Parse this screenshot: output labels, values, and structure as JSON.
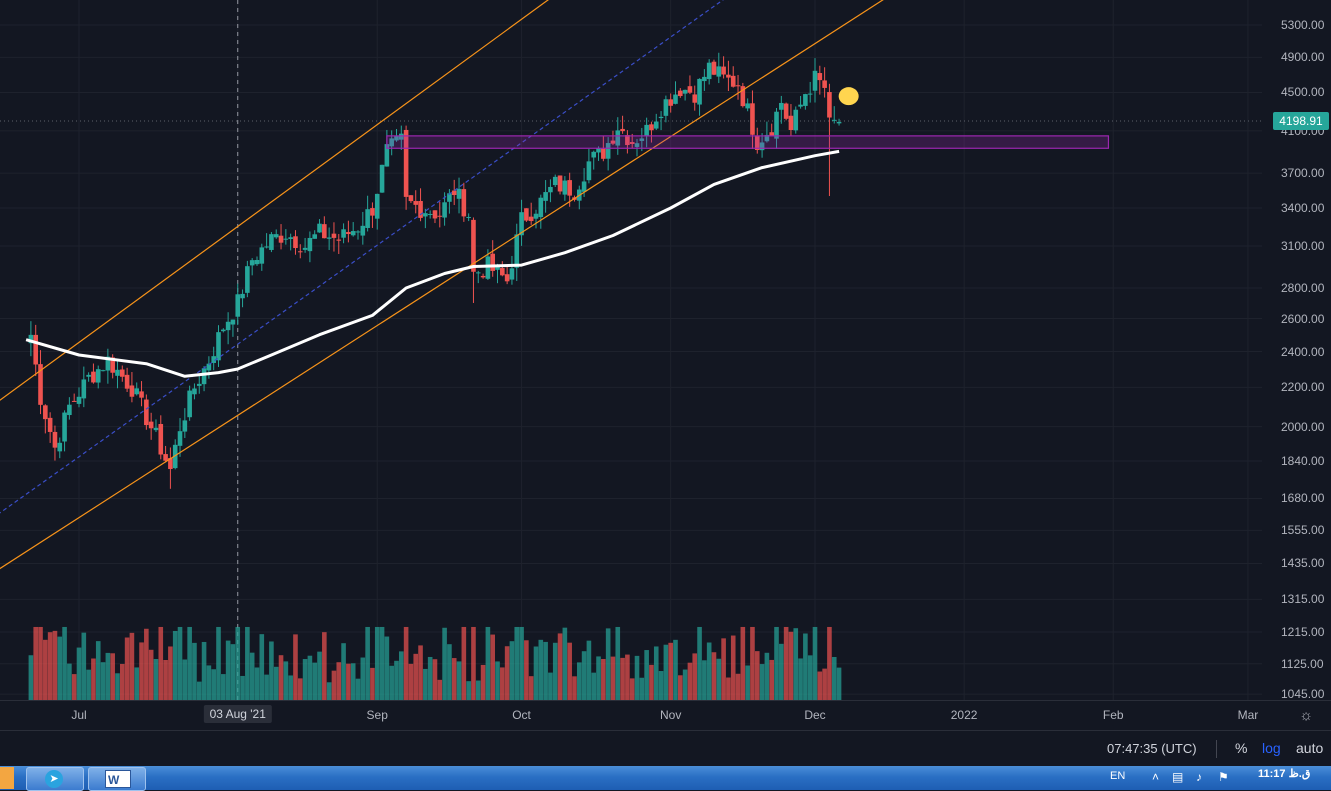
{
  "chart_data": {
    "type": "candlestick",
    "yscale": "log",
    "ylim": [
      1000,
      5600
    ],
    "price_ticks": [
      "5300.00",
      "4900.00",
      "4500.00",
      "4100.00",
      "3700.00",
      "3400.00",
      "3100.00",
      "2800.00",
      "2600.00",
      "2400.00",
      "2200.00",
      "2000.00",
      "1840.00",
      "1680.00",
      "1555.00",
      "1435.00",
      "1315.00",
      "1215.00",
      "1125.00",
      "1045.00"
    ],
    "current_price": "4198.91",
    "time_labels": [
      {
        "text": "Jul",
        "date": "2021-07-01"
      },
      {
        "text": "03 Aug '21",
        "date": "2021-08-03",
        "highlight": true
      },
      {
        "text": "Sep",
        "date": "2021-09-01"
      },
      {
        "text": "Oct",
        "date": "2021-10-01"
      },
      {
        "text": "Nov",
        "date": "2021-11-01"
      },
      {
        "text": "Dec",
        "date": "2021-12-01"
      },
      {
        "text": "2022",
        "date": "2022-01-01"
      },
      {
        "text": "Feb",
        "date": "2022-02-01"
      },
      {
        "text": "Mar",
        "date": "2022-03-01"
      }
    ],
    "close_anchors": [
      [
        "2021-06-21",
        2500
      ],
      [
        "2021-06-23",
        2150
      ],
      [
        "2021-06-26",
        1900
      ],
      [
        "2021-06-29",
        2100
      ],
      [
        "2021-07-03",
        2250
      ],
      [
        "2021-07-07",
        2350
      ],
      [
        "2021-07-12",
        2200
      ],
      [
        "2021-07-17",
        1950
      ],
      [
        "2021-07-20",
        1800
      ],
      [
        "2021-07-22",
        2000
      ],
      [
        "2021-07-25",
        2200
      ],
      [
        "2021-07-28",
        2350
      ],
      [
        "2021-07-31",
        2550
      ],
      [
        "2021-08-03",
        2700
      ],
      [
        "2021-08-06",
        3000
      ],
      [
        "2021-08-10",
        3150
      ],
      [
        "2021-08-13",
        3200
      ],
      [
        "2021-08-17",
        3100
      ],
      [
        "2021-08-20",
        3200
      ],
      [
        "2021-08-24",
        3150
      ],
      [
        "2021-08-28",
        3250
      ],
      [
        "2021-08-31",
        3400
      ],
      [
        "2021-09-03",
        3900
      ],
      [
        "2021-09-06",
        4000
      ],
      [
        "2021-09-07",
        3450
      ],
      [
        "2021-09-10",
        3400
      ],
      [
        "2021-09-14",
        3350
      ],
      [
        "2021-09-17",
        3550
      ],
      [
        "2021-09-20",
        3350
      ],
      [
        "2021-09-21",
        2900
      ],
      [
        "2021-09-24",
        2950
      ],
      [
        "2021-09-28",
        2850
      ],
      [
        "2021-10-01",
        3300
      ],
      [
        "2021-10-05",
        3450
      ],
      [
        "2021-10-08",
        3600
      ],
      [
        "2021-10-12",
        3550
      ],
      [
        "2021-10-15",
        3800
      ],
      [
        "2021-10-18",
        3900
      ],
      [
        "2021-10-21",
        4150
      ],
      [
        "2021-10-24",
        4000
      ],
      [
        "2021-10-27",
        4100
      ],
      [
        "2021-10-30",
        4350
      ],
      [
        "2021-11-03",
        4550
      ],
      [
        "2021-11-06",
        4500
      ],
      [
        "2021-11-09",
        4780
      ],
      [
        "2021-11-12",
        4650
      ],
      [
        "2021-11-15",
        4600
      ],
      [
        "2021-11-17",
        4300
      ],
      [
        "2021-11-19",
        4000
      ],
      [
        "2021-11-22",
        4150
      ],
      [
        "2021-11-24",
        4400
      ],
      [
        "2021-11-26",
        4100
      ],
      [
        "2021-11-29",
        4500
      ],
      [
        "2021-12-01",
        4650
      ],
      [
        "2021-12-03",
        4550
      ],
      [
        "2021-12-04",
        4150
      ],
      [
        "2021-12-06",
        4198
      ]
    ],
    "ma_line": [
      [
        "2021-06-20",
        2470
      ],
      [
        "2021-07-01",
        2380
      ],
      [
        "2021-07-15",
        2330
      ],
      [
        "2021-07-23",
        2260
      ],
      [
        "2021-07-30",
        2280
      ],
      [
        "2021-08-03",
        2300
      ],
      [
        "2021-08-10",
        2380
      ],
      [
        "2021-08-20",
        2500
      ],
      [
        "2021-08-31",
        2620
      ],
      [
        "2021-09-07",
        2800
      ],
      [
        "2021-09-15",
        2900
      ],
      [
        "2021-09-21",
        2950
      ],
      [
        "2021-10-01",
        2960
      ],
      [
        "2021-10-10",
        3050
      ],
      [
        "2021-10-20",
        3180
      ],
      [
        "2021-11-01",
        3400
      ],
      [
        "2021-11-10",
        3600
      ],
      [
        "2021-11-20",
        3750
      ],
      [
        "2021-12-01",
        3860
      ],
      [
        "2021-12-06",
        3900
      ]
    ],
    "channel_lines": [
      {
        "name": "upper",
        "color": "#f7931a",
        "from": [
          "2021-06-01",
          1900
        ],
        "to": [
          "2021-11-01",
          7000
        ]
      },
      {
        "name": "lower",
        "color": "#f7931a",
        "from": [
          "2021-06-01",
          1280
        ],
        "to": [
          "2022-01-13",
          7000
        ]
      },
      {
        "name": "mid",
        "color": "#3a4ec8",
        "dash": true,
        "from": [
          "2021-06-01",
          1450
        ],
        "to": [
          "2021-12-01",
          6600
        ]
      }
    ],
    "zone": {
      "from": "2021-09-03",
      "to": "2022-01-31",
      "low": 3930,
      "high": 4050,
      "color": "#9c27b0"
    },
    "marker_circle": {
      "date": "2021-12-08",
      "price": 4460,
      "color": "#ffd54f"
    },
    "crosshair_date": "2021-08-03",
    "colors": {
      "up": "#26a69a",
      "down": "#ef5350",
      "ma": "#ffffff",
      "background": "#131722",
      "grid": "#1e222d",
      "price_badge": "#26a69a"
    }
  },
  "bottom": {
    "clock": "07:47:35 (UTC)",
    "percent": "%",
    "log": "log",
    "auto": "auto"
  },
  "taskbar": {
    "lang": "EN",
    "time": "11:17 ق.ظ",
    "word_letter": "W"
  }
}
